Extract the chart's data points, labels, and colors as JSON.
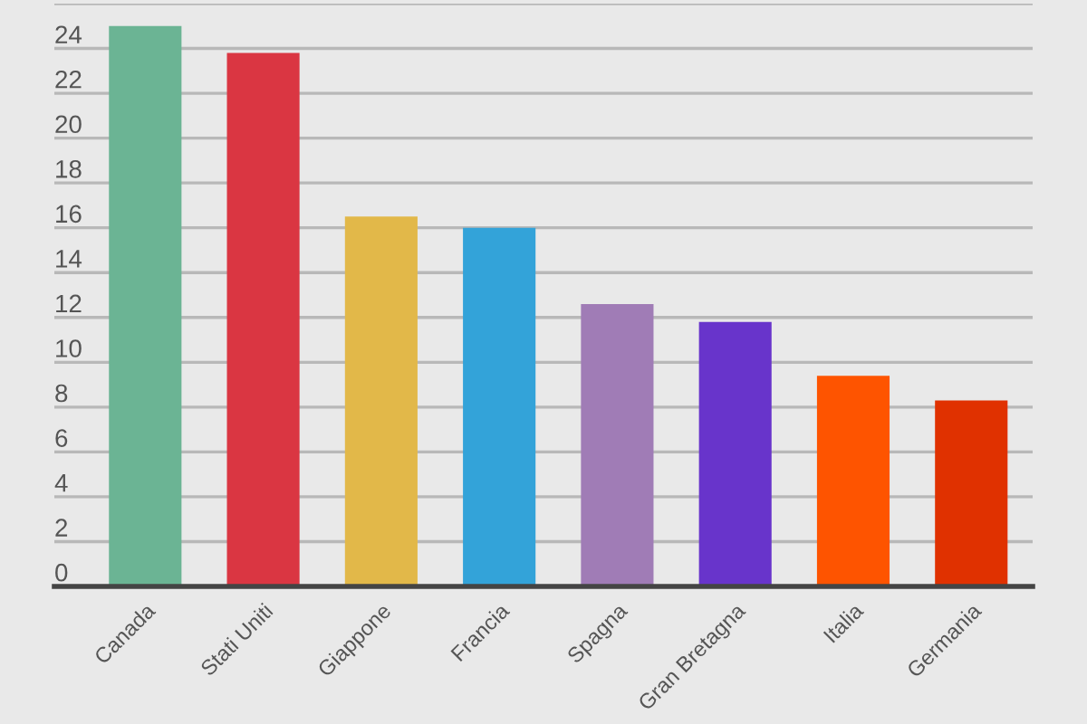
{
  "chart_data": {
    "type": "bar",
    "categories": [
      "Canada",
      "Stati Uniti",
      "Giappone",
      "Francia",
      "Spagna",
      "Gran Bretagna",
      "Italia",
      "Germania"
    ],
    "values": [
      25,
      23.8,
      16.5,
      16,
      12.6,
      11.8,
      9.4,
      8.3
    ],
    "colors": [
      "#6bb494",
      "#da3642",
      "#e2b849",
      "#33a3d9",
      "#a07cb6",
      "#6834cb",
      "#fe5400",
      "#e03100"
    ],
    "ylim": [
      0,
      26
    ],
    "yticks": [
      0,
      2,
      4,
      6,
      8,
      10,
      12,
      14,
      16,
      18,
      20,
      22,
      24,
      {
        "value": 26,
        "label": null
      }
    ],
    "grid": "y"
  }
}
